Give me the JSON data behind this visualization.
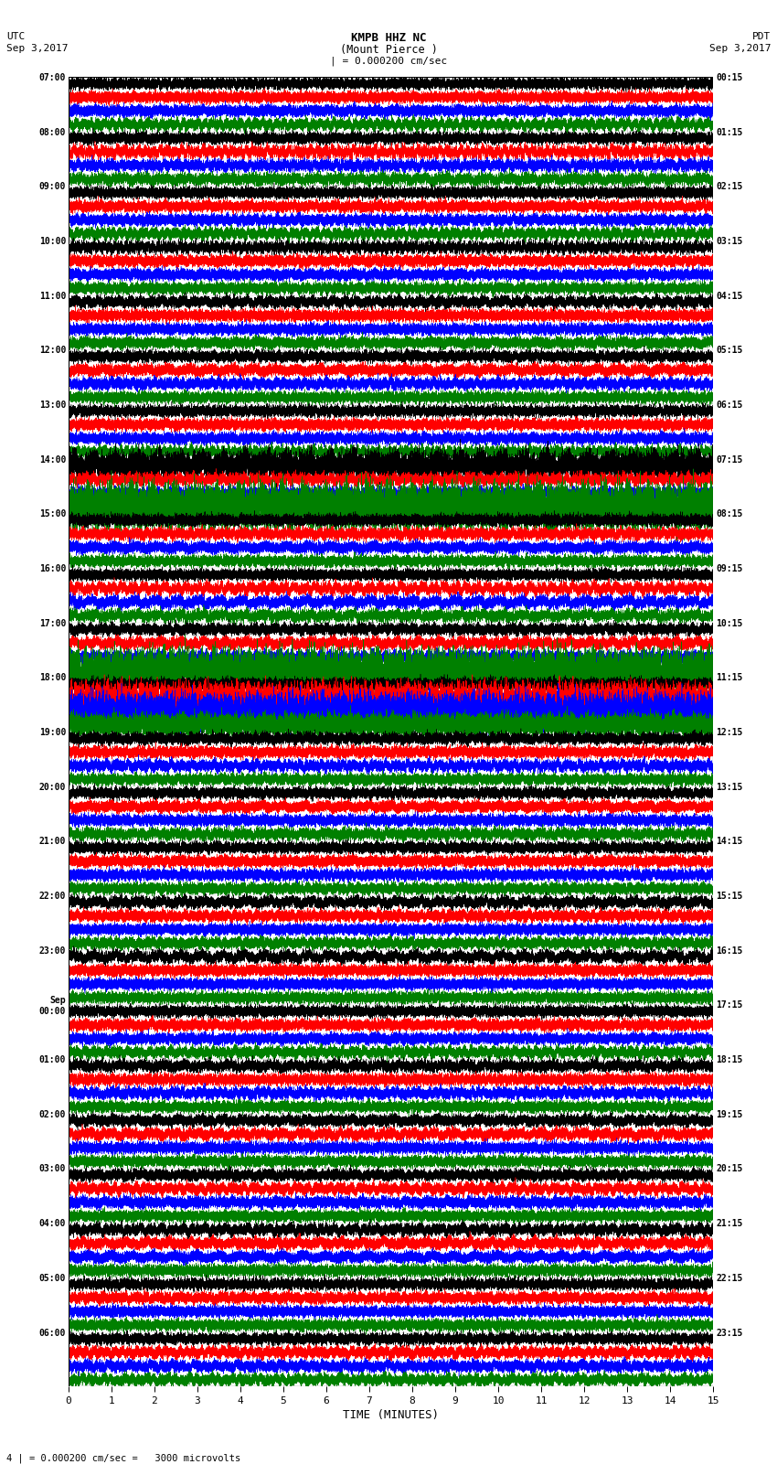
{
  "title_line1": "KMPB HHZ NC",
  "title_line2": "(Mount Pierce )",
  "title_scale": "| = 0.000200 cm/sec",
  "left_header1": "UTC",
  "left_header2": "Sep 3,2017",
  "right_header1": "PDT",
  "right_header2": "Sep 3,2017",
  "xlabel": "TIME (MINUTES)",
  "footer": "4 | = 0.000200 cm/sec =   3000 microvolts",
  "left_times": [
    "07:00",
    "08:00",
    "09:00",
    "10:00",
    "11:00",
    "12:00",
    "13:00",
    "14:00",
    "15:00",
    "16:00",
    "17:00",
    "18:00",
    "19:00",
    "20:00",
    "21:00",
    "22:00",
    "23:00",
    "Sep\n00:00",
    "01:00",
    "02:00",
    "03:00",
    "04:00",
    "05:00",
    "06:00"
  ],
  "right_times": [
    "00:15",
    "01:15",
    "02:15",
    "03:15",
    "04:15",
    "05:15",
    "06:15",
    "07:15",
    "08:15",
    "09:15",
    "10:15",
    "11:15",
    "12:15",
    "13:15",
    "14:15",
    "15:15",
    "16:15",
    "17:15",
    "18:15",
    "19:15",
    "20:15",
    "21:15",
    "22:15",
    "23:15"
  ],
  "trace_colors": [
    "black",
    "red",
    "blue",
    "green"
  ],
  "n_rows": 24,
  "n_traces_per_row": 4,
  "duration_minutes": 15,
  "background_color": "white",
  "grid_color": "#888888",
  "fig_width": 8.5,
  "fig_height": 16.13,
  "trace_amplitude": 0.28,
  "base_noise": 0.18,
  "lw": 0.35
}
